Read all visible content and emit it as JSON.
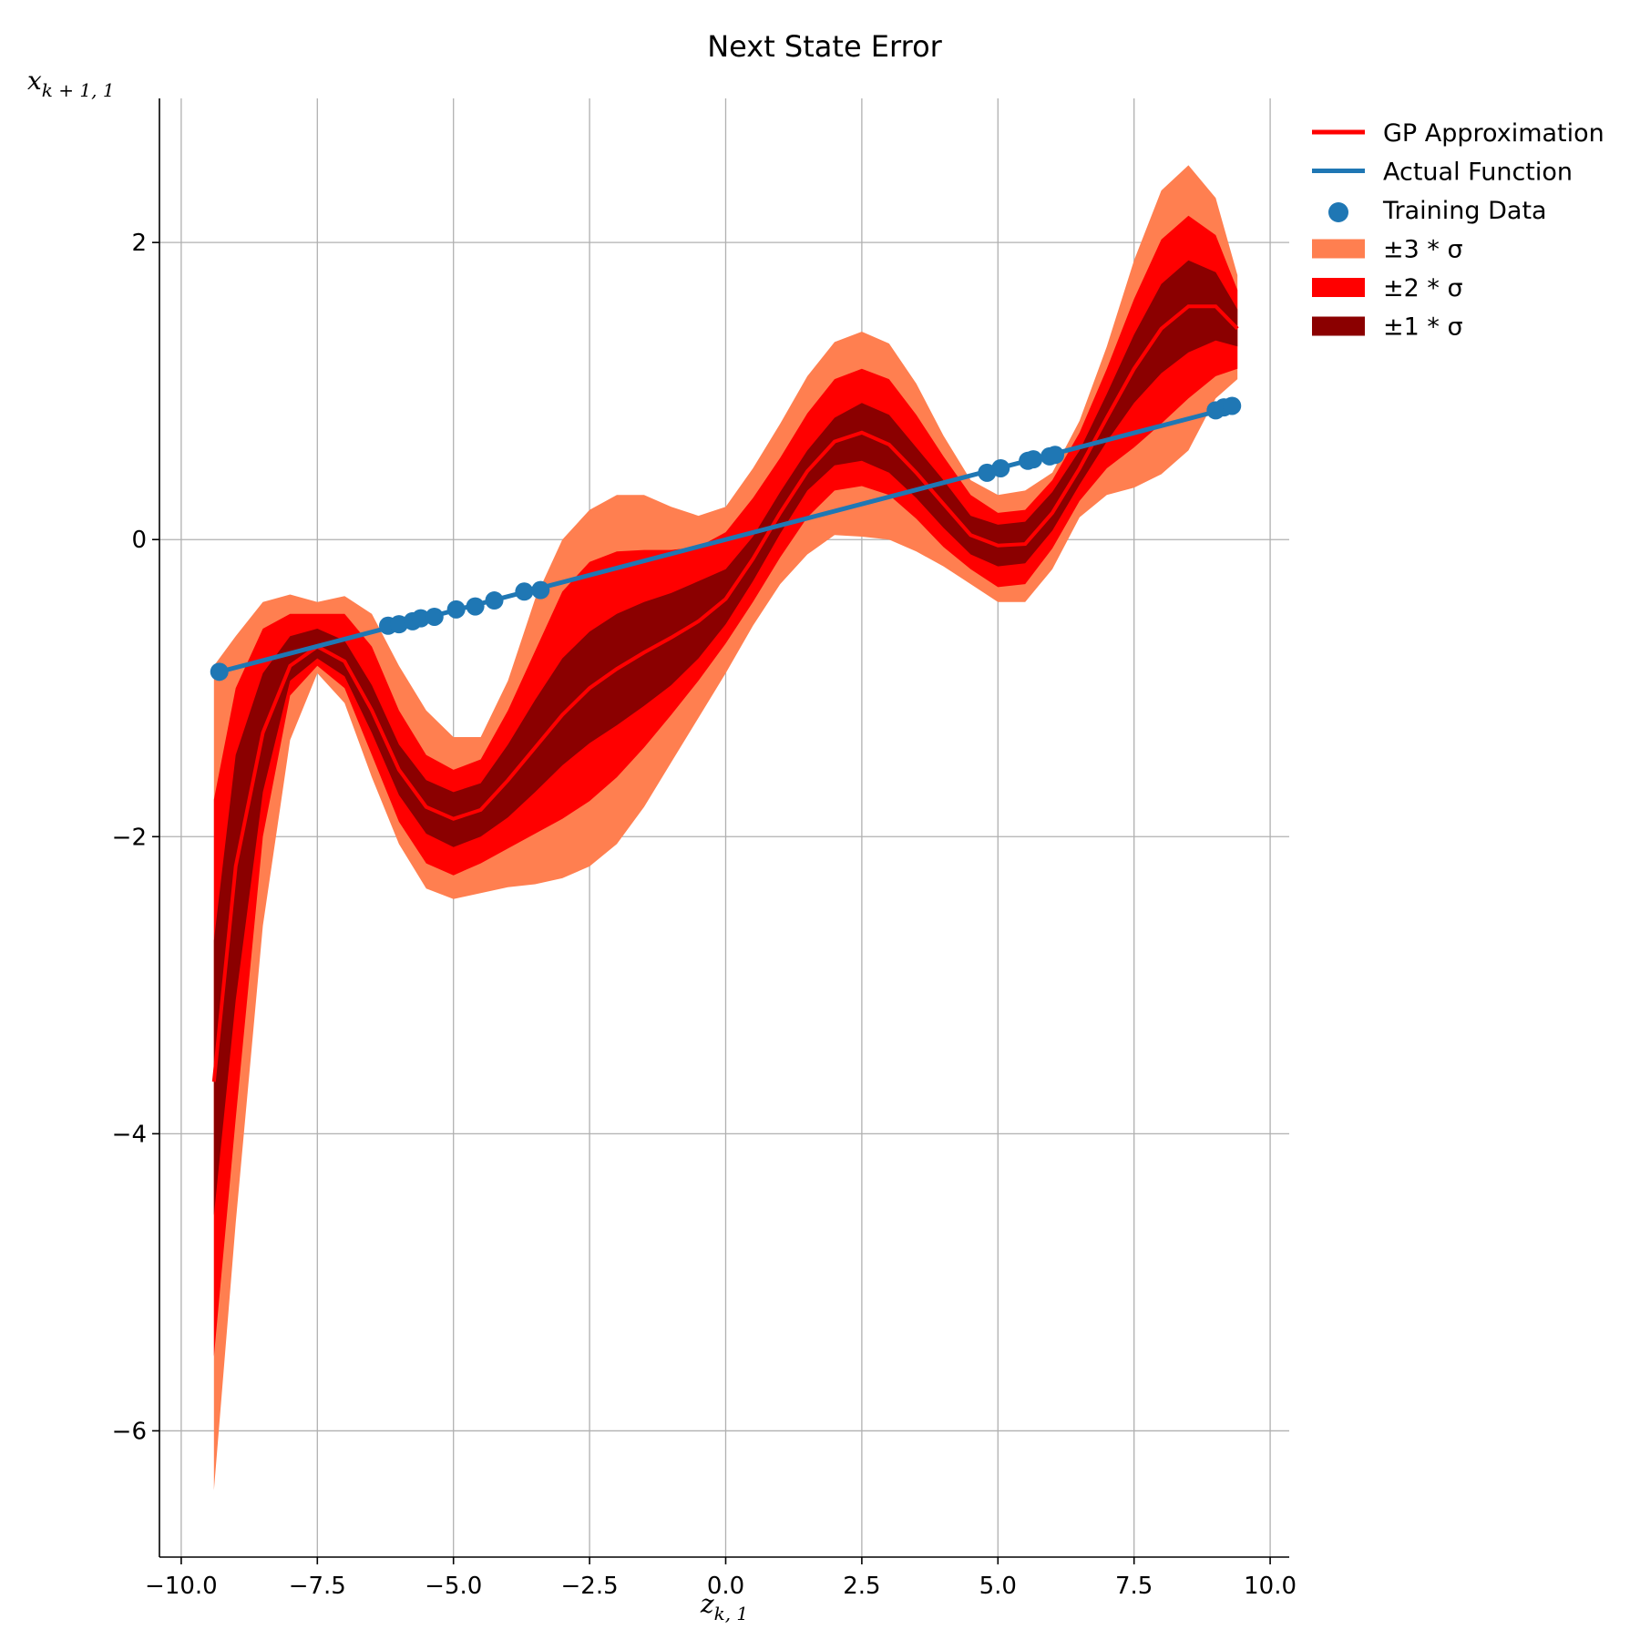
{
  "chart_data": {
    "type": "line",
    "title": "Next State Error",
    "xlabel": "z",
    "xlabel_sub": "k, 1",
    "ylabel": "x",
    "ylabel_sub": "k + 1, 1",
    "xlim": [
      -10.4,
      10.35
    ],
    "ylim": [
      -6.85,
      2.97
    ],
    "xticks": [
      -10,
      -7.5,
      -5,
      -2.5,
      0,
      2.5,
      5,
      7.5,
      10
    ],
    "xtick_labels": [
      "−10.0",
      "−7.5",
      "−5.0",
      "−2.5",
      "0.0",
      "2.5",
      "5.0",
      "7.5",
      "10.0"
    ],
    "yticks": [
      -6,
      -4,
      -2,
      0,
      2
    ],
    "ytick_labels": [
      "−6",
      "−4",
      "−2",
      "0",
      "2"
    ],
    "grid": true,
    "legend_position": "outside-top-right",
    "colors": {
      "gp": "#ff0000",
      "actual": "#1f77b4",
      "training": "#1f77b4",
      "band3": "#ff7f50",
      "band2": "#ff0000",
      "band1": "#8b0000"
    },
    "legend": [
      {
        "label": "GP Approximation",
        "kind": "line",
        "color": "#ff0000"
      },
      {
        "label": "Actual Function",
        "kind": "line",
        "color": "#1f77b4"
      },
      {
        "label": "Training Data",
        "kind": "marker",
        "color": "#1f77b4"
      },
      {
        "label": "±3 * σ",
        "kind": "patch",
        "color": "#ff7f50"
      },
      {
        "label": "±2 * σ",
        "kind": "patch",
        "color": "#ff0000"
      },
      {
        "label": "±1 * σ",
        "kind": "patch",
        "color": "#8b0000"
      }
    ],
    "x": [
      -9.4,
      -9.0,
      -8.5,
      -8.0,
      -7.5,
      -7.0,
      -6.5,
      -6.0,
      -5.5,
      -5.0,
      -4.5,
      -4.0,
      -3.5,
      -3.0,
      -2.5,
      -2.0,
      -1.5,
      -1.0,
      -0.5,
      0.0,
      0.5,
      1.0,
      1.5,
      2.0,
      2.5,
      3.0,
      3.5,
      4.0,
      4.5,
      5.0,
      5.5,
      6.0,
      6.5,
      7.0,
      7.5,
      8.0,
      8.5,
      9.0,
      9.4
    ],
    "series": [
      {
        "name": "GP Approximation",
        "mean": [
          -3.65,
          -2.2,
          -1.3,
          -0.85,
          -0.72,
          -0.82,
          -1.15,
          -1.55,
          -1.8,
          -1.88,
          -1.82,
          -1.62,
          -1.4,
          -1.18,
          -1.0,
          -0.87,
          -0.76,
          -0.66,
          -0.55,
          -0.4,
          -0.13,
          0.18,
          0.46,
          0.66,
          0.72,
          0.64,
          0.45,
          0.24,
          0.03,
          -0.04,
          -0.03,
          0.18,
          0.48,
          0.82,
          1.15,
          1.42,
          1.57,
          1.57,
          1.42
        ],
        "lower3": [
          -6.4,
          -4.6,
          -2.6,
          -1.35,
          -0.9,
          -1.1,
          -1.6,
          -2.05,
          -2.35,
          -2.42,
          -2.38,
          -2.34,
          -2.32,
          -2.28,
          -2.2,
          -2.05,
          -1.8,
          -1.5,
          -1.2,
          -0.9,
          -0.58,
          -0.3,
          -0.1,
          0.03,
          0.02,
          0.0,
          -0.08,
          -0.18,
          -0.3,
          -0.42,
          -0.42,
          -0.2,
          0.15,
          0.3,
          0.35,
          0.44,
          0.6,
          0.95,
          1.08
        ],
        "upper3": [
          -0.85,
          -0.65,
          -0.42,
          -0.37,
          -0.42,
          -0.38,
          -0.5,
          -0.85,
          -1.15,
          -1.33,
          -1.33,
          -0.95,
          -0.4,
          0.0,
          0.2,
          0.3,
          0.3,
          0.22,
          0.16,
          0.22,
          0.48,
          0.78,
          1.1,
          1.33,
          1.4,
          1.32,
          1.05,
          0.7,
          0.4,
          0.3,
          0.33,
          0.45,
          0.8,
          1.3,
          1.88,
          2.35,
          2.52,
          2.3,
          1.78
        ],
        "lower2": [
          -5.5,
          -3.9,
          -2.0,
          -1.05,
          -0.85,
          -1.0,
          -1.45,
          -1.9,
          -2.18,
          -2.26,
          -2.18,
          -2.08,
          -1.98,
          -1.88,
          -1.76,
          -1.6,
          -1.4,
          -1.18,
          -0.95,
          -0.7,
          -0.42,
          -0.12,
          0.15,
          0.33,
          0.36,
          0.3,
          0.14,
          -0.05,
          -0.2,
          -0.32,
          -0.3,
          -0.06,
          0.26,
          0.48,
          0.62,
          0.78,
          0.95,
          1.1,
          1.15
        ],
        "upper2": [
          -1.75,
          -1.0,
          -0.6,
          -0.5,
          -0.5,
          -0.5,
          -0.72,
          -1.15,
          -1.45,
          -1.55,
          -1.48,
          -1.15,
          -0.75,
          -0.35,
          -0.15,
          -0.08,
          -0.07,
          -0.07,
          -0.05,
          0.05,
          0.28,
          0.55,
          0.85,
          1.08,
          1.15,
          1.08,
          0.84,
          0.56,
          0.3,
          0.18,
          0.2,
          0.4,
          0.72,
          1.15,
          1.62,
          2.02,
          2.18,
          2.05,
          1.68
        ],
        "lower1": [
          -4.55,
          -3.1,
          -1.7,
          -0.95,
          -0.8,
          -0.92,
          -1.3,
          -1.72,
          -1.98,
          -2.07,
          -2.0,
          -1.87,
          -1.7,
          -1.52,
          -1.37,
          -1.25,
          -1.12,
          -0.98,
          -0.8,
          -0.57,
          -0.28,
          0.04,
          0.33,
          0.5,
          0.53,
          0.45,
          0.28,
          0.08,
          -0.1,
          -0.18,
          -0.16,
          0.06,
          0.37,
          0.66,
          0.92,
          1.12,
          1.26,
          1.34,
          1.3
        ],
        "upper1": [
          -2.7,
          -1.45,
          -0.9,
          -0.65,
          -0.6,
          -0.68,
          -0.98,
          -1.38,
          -1.62,
          -1.7,
          -1.64,
          -1.38,
          -1.08,
          -0.8,
          -0.62,
          -0.5,
          -0.42,
          -0.36,
          -0.28,
          -0.2,
          0.02,
          0.32,
          0.6,
          0.82,
          0.92,
          0.84,
          0.62,
          0.4,
          0.16,
          0.1,
          0.12,
          0.32,
          0.6,
          0.98,
          1.38,
          1.72,
          1.88,
          1.8,
          1.55
        ]
      },
      {
        "name": "Actual Function",
        "x": [
          -9.4,
          9.4
        ],
        "y": [
          -0.9,
          0.9
        ]
      }
    ],
    "training_data": {
      "x": [
        -9.3,
        -6.2,
        -6.0,
        -5.75,
        -5.6,
        -5.35,
        -4.95,
        -4.6,
        -4.25,
        -3.7,
        -3.4,
        4.8,
        5.05,
        5.55,
        5.65,
        5.95,
        6.05,
        9.0,
        9.15,
        9.3
      ],
      "y": [
        -0.89,
        -0.58,
        -0.57,
        -0.55,
        -0.53,
        -0.52,
        -0.47,
        -0.45,
        -0.41,
        -0.35,
        -0.34,
        0.45,
        0.48,
        0.53,
        0.54,
        0.56,
        0.57,
        0.87,
        0.89,
        0.9
      ]
    }
  }
}
